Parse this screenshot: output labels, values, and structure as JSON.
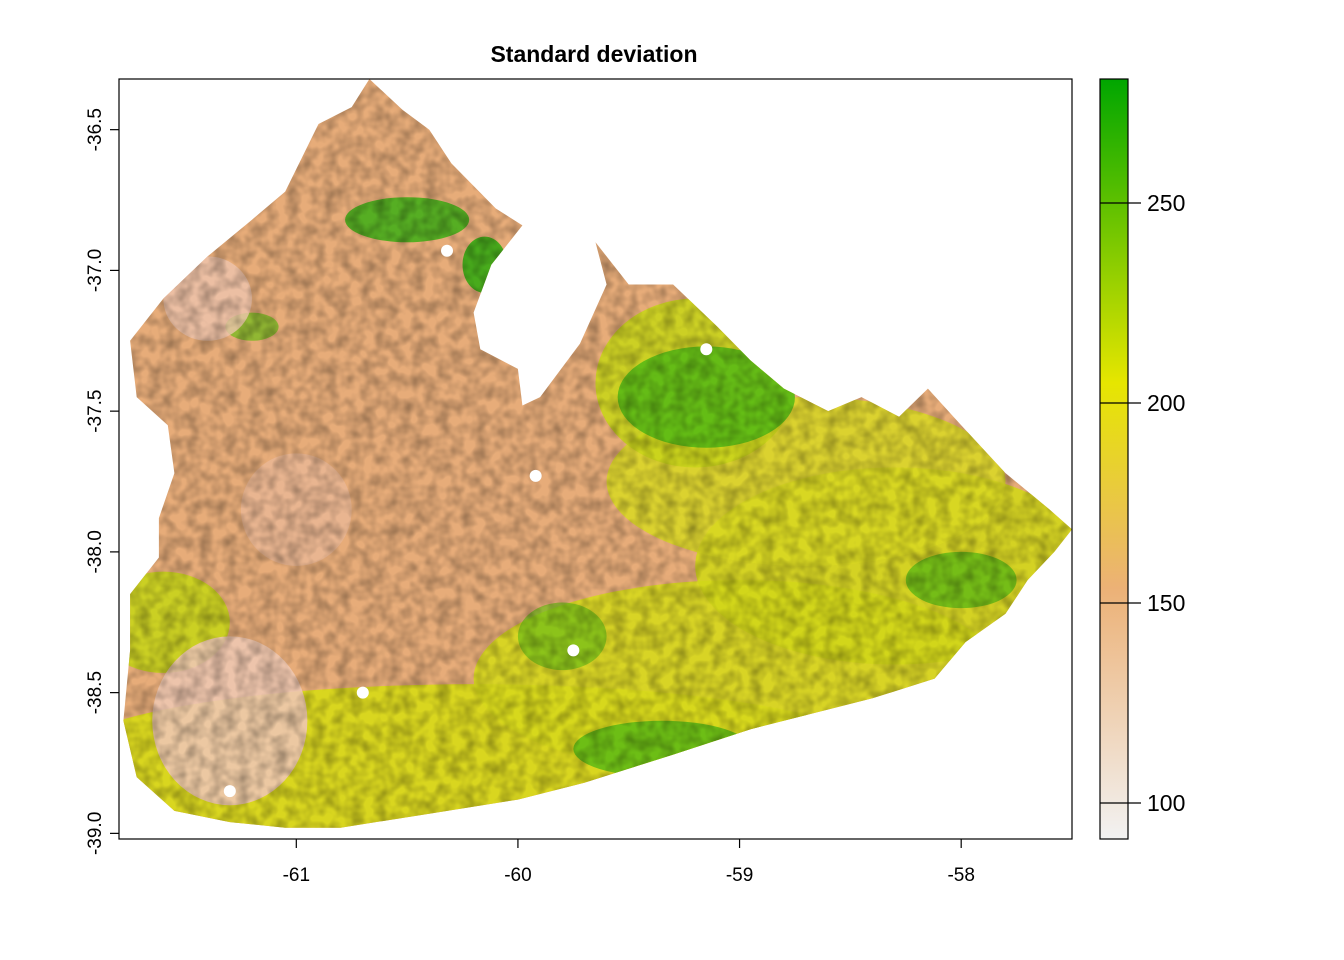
{
  "chart_data": {
    "type": "heatmap",
    "title": "Standard deviation",
    "xlabel": "",
    "ylabel": "",
    "x_ticks": [
      "-61",
      "-60",
      "-59",
      "-58"
    ],
    "y_ticks": [
      "-36.5",
      "-37.0",
      "-37.5",
      "-38.0",
      "-38.5",
      "-39.0"
    ],
    "xlim": [
      -61.8,
      -57.5
    ],
    "ylim": [
      -39.02,
      -36.32
    ],
    "legend": {
      "placement": "right",
      "min": 91,
      "max": 281,
      "ticks": [
        "100",
        "150",
        "200",
        "250"
      ],
      "colors": [
        "#f2f2f2",
        "#ecb176",
        "#e6e600",
        "#00a600"
      ]
    },
    "grid": false
  }
}
